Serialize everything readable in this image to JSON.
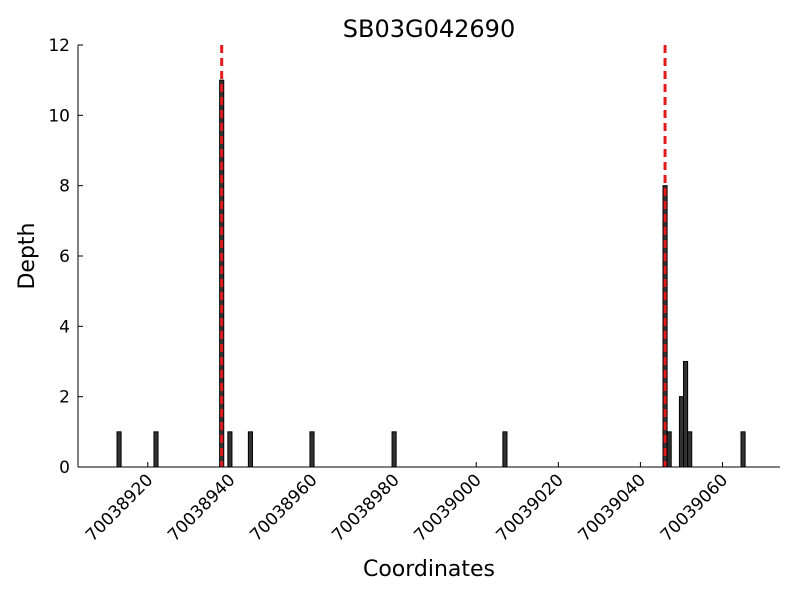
{
  "chart_data": {
    "type": "bar",
    "title": "SB03G042690",
    "xlabel": "Coordinates",
    "ylabel": "Depth",
    "x": [
      70038913,
      70038922,
      70038938,
      70038940,
      70038945,
      70038960,
      70038980,
      70039007,
      70039046,
      70039047,
      70039050,
      70039051,
      70039052,
      70039065
    ],
    "values": [
      1,
      1,
      11,
      1,
      1,
      1,
      1,
      1,
      8,
      1,
      2,
      3,
      1,
      1
    ],
    "color": "#333333",
    "vlines": [
      70038938,
      70039046
    ],
    "vline_color": "#e41a1c",
    "xlim": [
      70038903,
      70039074
    ],
    "xticks": [
      70038920,
      70038940,
      70038960,
      70038980,
      70039000,
      70039020,
      70039040,
      70039060
    ],
    "ylim": [
      0,
      12
    ],
    "yticks": [
      0,
      2,
      4,
      6,
      8,
      10,
      12
    ]
  }
}
